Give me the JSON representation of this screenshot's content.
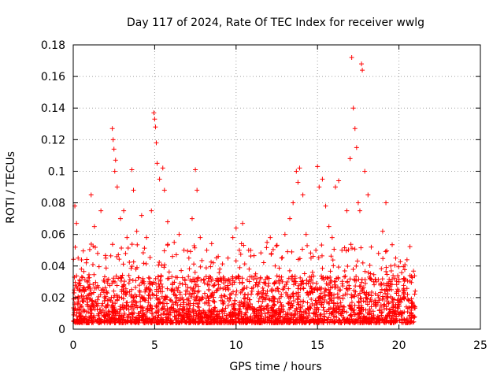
{
  "chart_data": {
    "type": "scatter",
    "title": "Day 117 of 2024, Rate Of TEC Index for receiver wwlg",
    "xlabel": "GPS time / hours",
    "ylabel": "ROTI / TECUs",
    "xlim": [
      0,
      25
    ],
    "ylim": [
      0,
      0.18
    ],
    "xticks": [
      "0",
      "5",
      "10",
      "15",
      "20",
      "25"
    ],
    "yticks": [
      "0",
      "0.02",
      "0.04",
      "0.06",
      "0.08",
      "0.1",
      "0.12",
      "0.14",
      "0.16",
      "0.18"
    ],
    "grid": true,
    "marker": "+",
    "color": "#ff0000",
    "data_extent_x": [
      0,
      21
    ],
    "series": [
      {
        "points": [
          [
            0.1,
            0.078
          ],
          [
            0.2,
            0.067
          ],
          [
            0.3,
            0.045
          ],
          [
            0.5,
            0.038
          ],
          [
            0.8,
            0.042
          ],
          [
            1.1,
            0.085
          ],
          [
            1.3,
            0.065
          ],
          [
            1.5,
            0.048
          ],
          [
            1.7,
            0.075
          ],
          [
            2.0,
            0.045
          ],
          [
            2.4,
            0.127
          ],
          [
            2.45,
            0.12
          ],
          [
            2.5,
            0.114
          ],
          [
            2.55,
            0.1
          ],
          [
            2.6,
            0.107
          ],
          [
            2.7,
            0.09
          ],
          [
            2.9,
            0.07
          ],
          [
            3.1,
            0.075
          ],
          [
            3.3,
            0.058
          ],
          [
            3.6,
            0.101
          ],
          [
            3.7,
            0.088
          ],
          [
            3.9,
            0.062
          ],
          [
            4.2,
            0.072
          ],
          [
            4.5,
            0.058
          ],
          [
            4.8,
            0.075
          ],
          [
            4.95,
            0.137
          ],
          [
            5.0,
            0.133
          ],
          [
            5.05,
            0.128
          ],
          [
            5.1,
            0.118
          ],
          [
            5.15,
            0.105
          ],
          [
            5.3,
            0.095
          ],
          [
            5.5,
            0.102
          ],
          [
            5.6,
            0.088
          ],
          [
            5.8,
            0.068
          ],
          [
            6.2,
            0.055
          ],
          [
            6.5,
            0.06
          ],
          [
            6.8,
            0.05
          ],
          [
            7.1,
            0.045
          ],
          [
            7.3,
            0.07
          ],
          [
            7.5,
            0.101
          ],
          [
            7.6,
            0.088
          ],
          [
            7.8,
            0.058
          ],
          [
            8.2,
            0.05
          ],
          [
            8.6,
            0.042
          ],
          [
            9.0,
            0.038
          ],
          [
            9.5,
            0.045
          ],
          [
            9.8,
            0.058
          ],
          [
            10.0,
            0.064
          ],
          [
            10.2,
            0.05
          ],
          [
            10.4,
            0.067
          ],
          [
            10.8,
            0.038
          ],
          [
            11.2,
            0.035
          ],
          [
            11.5,
            0.032
          ],
          [
            11.9,
            0.055
          ],
          [
            12.1,
            0.058
          ],
          [
            12.4,
            0.04
          ],
          [
            12.8,
            0.045
          ],
          [
            13.0,
            0.06
          ],
          [
            13.3,
            0.07
          ],
          [
            13.5,
            0.08
          ],
          [
            13.7,
            0.1
          ],
          [
            13.8,
            0.093
          ],
          [
            13.9,
            0.102
          ],
          [
            14.1,
            0.085
          ],
          [
            14.3,
            0.06
          ],
          [
            14.6,
            0.045
          ],
          [
            14.9,
            0.05
          ],
          [
            15.0,
            0.103
          ],
          [
            15.1,
            0.09
          ],
          [
            15.3,
            0.095
          ],
          [
            15.5,
            0.078
          ],
          [
            15.7,
            0.065
          ],
          [
            15.9,
            0.058
          ],
          [
            16.1,
            0.09
          ],
          [
            16.3,
            0.094
          ],
          [
            16.5,
            0.05
          ],
          [
            16.8,
            0.075
          ],
          [
            17.0,
            0.108
          ],
          [
            17.1,
            0.172
          ],
          [
            17.2,
            0.14
          ],
          [
            17.3,
            0.127
          ],
          [
            17.4,
            0.115
          ],
          [
            17.5,
            0.08
          ],
          [
            17.6,
            0.075
          ],
          [
            17.7,
            0.168
          ],
          [
            17.75,
            0.164
          ],
          [
            17.9,
            0.1
          ],
          [
            18.1,
            0.085
          ],
          [
            18.3,
            0.052
          ],
          [
            18.6,
            0.03
          ],
          [
            19.0,
            0.062
          ],
          [
            19.2,
            0.08
          ],
          [
            19.5,
            0.04
          ],
          [
            19.8,
            0.045
          ],
          [
            20.0,
            0.03
          ],
          [
            20.3,
            0.02
          ],
          [
            20.6,
            0.018
          ],
          [
            20.9,
            0.015
          ]
        ]
      }
    ]
  }
}
